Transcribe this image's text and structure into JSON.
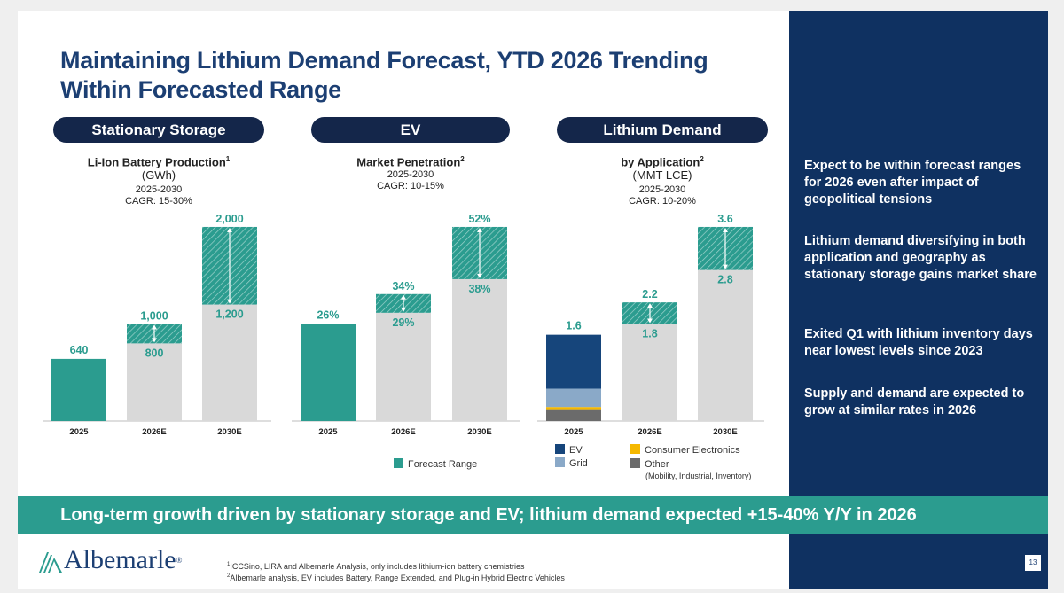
{
  "title": "Maintaining Lithium Demand Forecast, YTD 2026 Trending Within Forecasted Range",
  "panels": [
    {
      "pill": "Stationary Storage",
      "heading": "Li-Ion Battery Production",
      "sup": "1",
      "unit": "(GWh)",
      "cagr_years": "2025-2030",
      "cagr": "CAGR: 15-30%"
    },
    {
      "pill": "EV",
      "heading": "Market Penetration",
      "sup": "2",
      "unit": "",
      "cagr_years": "2025-2030",
      "cagr": "CAGR: 10-15%"
    },
    {
      "pill": "Lithium Demand",
      "heading": "by Application",
      "sup": "2",
      "unit": "(MMT LCE)",
      "cagr_years": "2025-2030",
      "cagr": "CAGR: 10-20%"
    }
  ],
  "chart_data": [
    {
      "type": "bar",
      "title": "Li-Ion Battery Production (GWh)",
      "categories": [
        "2025",
        "2026E",
        "2030E"
      ],
      "base_values": [
        640,
        800,
        1200
      ],
      "forecast_high": [
        null,
        1000,
        2000
      ],
      "labels_low": [
        "640",
        "800",
        "1,200"
      ],
      "labels_high": [
        "",
        "1,000",
        "2,000"
      ],
      "ylim": [
        0,
        2100
      ]
    },
    {
      "type": "bar",
      "title": "Market Penetration",
      "categories": [
        "2025",
        "2026E",
        "2030E"
      ],
      "base_values": [
        26,
        29,
        38
      ],
      "forecast_high": [
        null,
        34,
        52
      ],
      "labels_low": [
        "26%",
        "29%",
        "38%"
      ],
      "labels_high": [
        "",
        "34%",
        "52%"
      ],
      "ylim": [
        0,
        54.6
      ]
    },
    {
      "type": "bar",
      "title": "by Application (MMT LCE)",
      "categories": [
        "2025",
        "2026E",
        "2030E"
      ],
      "stack_2025": [
        {
          "name": "Other",
          "value": 0.22
        },
        {
          "name": "Consumer Electronics",
          "value": 0.04
        },
        {
          "name": "Grid",
          "value": 0.34
        },
        {
          "name": "EV",
          "value": 1.0
        }
      ],
      "base_values": [
        1.6,
        1.8,
        2.8
      ],
      "forecast_high": [
        null,
        2.2,
        3.6
      ],
      "labels_low": [
        "1.6",
        "1.8",
        "2.8"
      ],
      "labels_high": [
        "",
        "2.2",
        "3.6"
      ],
      "ylim": [
        0,
        3.78
      ]
    }
  ],
  "legend": {
    "forecast": "Forecast Range",
    "ev": "EV",
    "grid": "Grid",
    "consumer": "Consumer Electronics",
    "other": "Other",
    "other_note": "(Mobility, Industrial, Inventory)"
  },
  "colors": {
    "teal": "#2b9c8f",
    "gray": "#d9d9d9",
    "ev": "#16457b",
    "grid": "#8aa9c8",
    "consumer": "#f5b800",
    "other": "#6b6b6b",
    "label": "#2b9c8f",
    "navy": "#0f3161"
  },
  "sidebar": [
    "Expect to be within forecast ranges for 2026 even after impact of geopolitical tensions",
    "Lithium demand diversifying in both application and geography as stationary storage gains market share",
    "Exited Q1 with lithium inventory days near lowest levels since 2023",
    "Supply and demand are expected to grow at similar rates in 2026"
  ],
  "banner": "Long-term growth driven by stationary storage and EV; lithium demand expected +15-40% Y/Y in 2026",
  "logo": {
    "name": "Albemarle",
    "reg": "®"
  },
  "footnotes": [
    {
      "sup": "1",
      "text": "ICCSino, LIRA and Albemarle Analysis, only includes lithium-ion battery chemistries"
    },
    {
      "sup": "2",
      "text": "Albemarle analysis, EV includes Battery, Range Extended, and Plug-in Hybrid Electric Vehicles"
    }
  ],
  "page_number": "13"
}
